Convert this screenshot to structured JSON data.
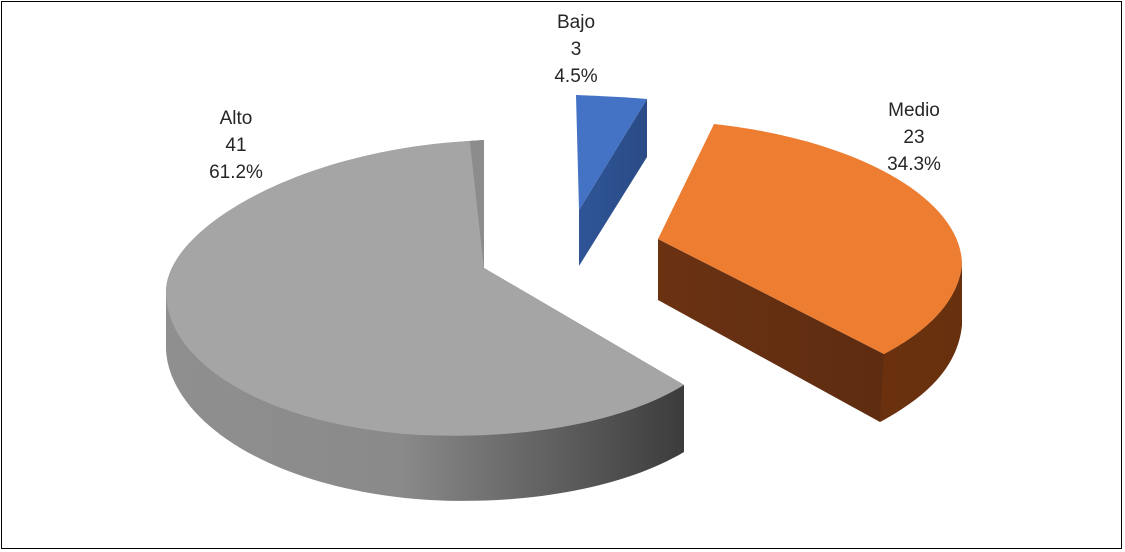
{
  "chart_data": {
    "type": "pie",
    "style": "3d-exploded",
    "title": "",
    "slices": [
      {
        "label": "Bajo",
        "value": 3,
        "percent": "4.5%",
        "color": "#4472c4",
        "side_color": "#2f5597"
      },
      {
        "label": "Medio",
        "value": 23,
        "percent": "34.3%",
        "color": "#ed7d31",
        "side_color": "#843c0c"
      },
      {
        "label": "Alto",
        "value": 41,
        "percent": "61.2%",
        "color": "#a5a5a5",
        "side_color": "#595959"
      }
    ]
  }
}
